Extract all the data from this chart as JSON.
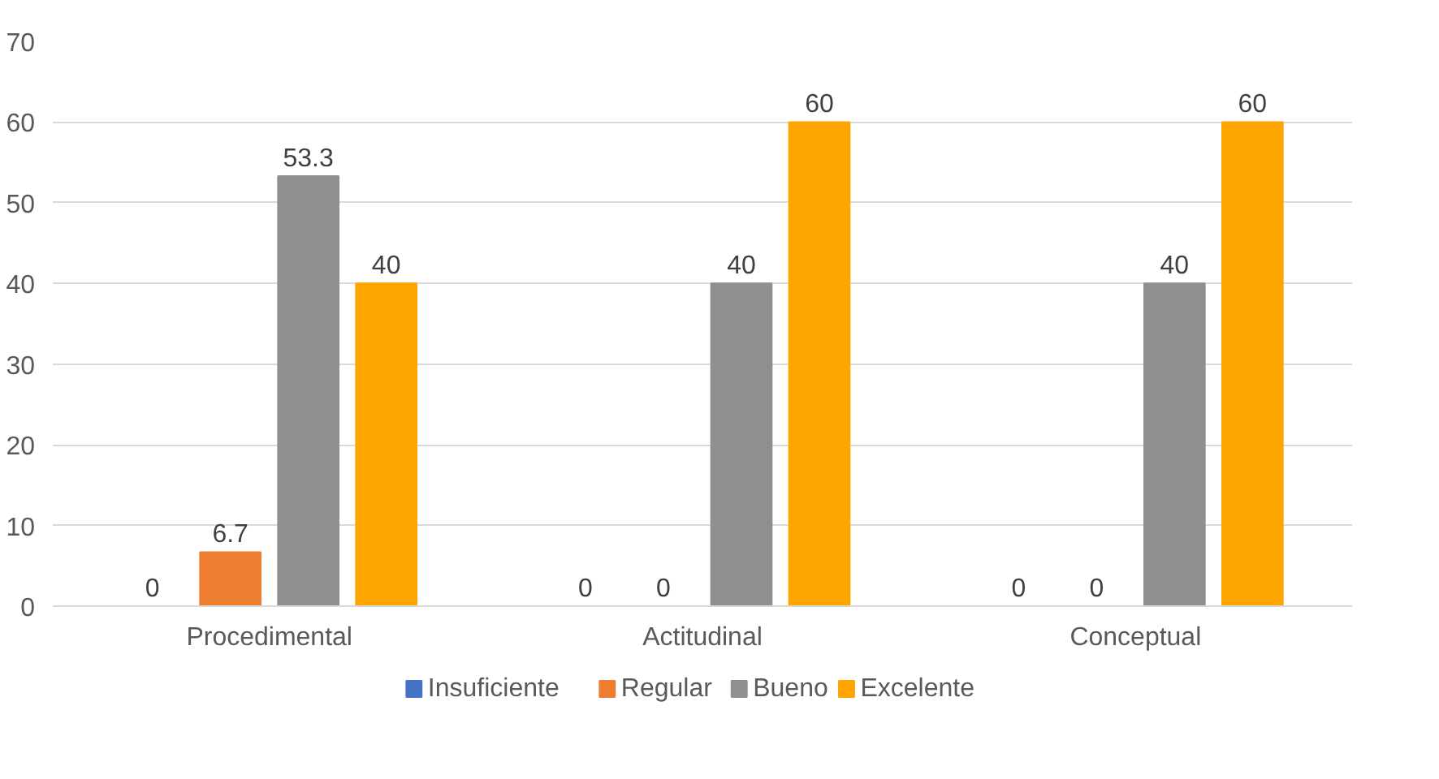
{
  "chart_data": {
    "type": "bar",
    "categories": [
      "Procedimental",
      "Actitudinal",
      "Conceptual"
    ],
    "series": [
      {
        "name": "Insuficiente",
        "color": "#4472c4",
        "values": [
          0,
          0,
          0
        ]
      },
      {
        "name": "Regular",
        "color": "#ed7d31",
        "values": [
          6.7,
          0,
          0
        ]
      },
      {
        "name": "Bueno",
        "color": "#8f8f8f",
        "values": [
          53.3,
          40,
          40
        ]
      },
      {
        "name": "Excelente",
        "color": "#ffa500",
        "values": [
          40,
          60,
          60
        ]
      }
    ],
    "ylim": [
      0,
      70
    ],
    "yticks": [
      0,
      10,
      20,
      30,
      40,
      50,
      60,
      70
    ],
    "grid": "y",
    "legend": "bottom",
    "data_labels": true
  }
}
